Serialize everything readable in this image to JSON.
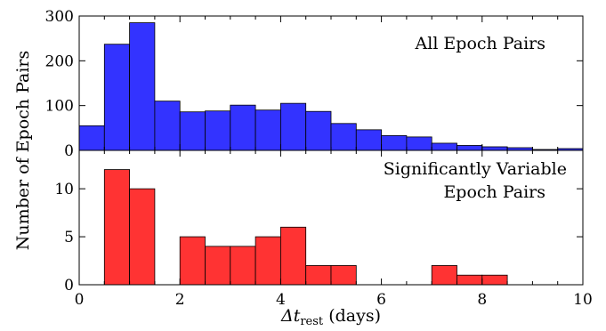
{
  "chart_data": [
    {
      "type": "bar",
      "title": "All Epoch Pairs",
      "xlabel": "Δt_rest (days)",
      "ylabel": "Number of Epoch Pairs",
      "xlim": [
        0,
        10
      ],
      "ylim": [
        0,
        300
      ],
      "bin_width": 0.5,
      "bin_starts": [
        0,
        0.5,
        1,
        1.5,
        2,
        2.5,
        3,
        3.5,
        4,
        4.5,
        5,
        5.5,
        6,
        6.5,
        7,
        7.5,
        8,
        8.5,
        9,
        9.5
      ],
      "values": [
        55,
        237,
        285,
        110,
        86,
        88,
        101,
        90,
        105,
        87,
        60,
        46,
        33,
        30,
        16,
        11,
        8,
        6,
        2,
        4
      ],
      "color": "#3333ff",
      "yticks": [
        "0",
        "100",
        "200",
        "300"
      ],
      "grid": false
    },
    {
      "type": "bar",
      "title_lines": [
        "Significantly Variable",
        "Epoch Pairs"
      ],
      "xlabel": "Δt_rest (days)",
      "ylabel": "Number of Epoch Pairs",
      "xlim": [
        0,
        10
      ],
      "ylim": [
        0,
        14
      ],
      "bin_width": 0.5,
      "bin_starts": [
        0,
        0.5,
        1,
        1.5,
        2,
        2.5,
        3,
        3.5,
        4,
        4.5,
        5,
        5.5,
        6,
        6.5,
        7,
        7.5,
        8,
        8.5,
        9,
        9.5
      ],
      "values": [
        0,
        12,
        10,
        0,
        5,
        4,
        4,
        5,
        6,
        2,
        2,
        0,
        0,
        0,
        2,
        1,
        1,
        0,
        0,
        0
      ],
      "color": "#ff3333",
      "yticks": [
        "0",
        "5",
        "10"
      ],
      "xticks": [
        "0",
        "2",
        "4",
        "6",
        "8",
        "10"
      ],
      "grid": false
    }
  ],
  "labels": {
    "ylabel": "Number of Epoch Pairs",
    "xlabel_main": "Δt",
    "xlabel_sub": "rest",
    "xlabel_unit": " (days)",
    "top_title": "All Epoch Pairs",
    "bottom_title_1": "Significantly Variable",
    "bottom_title_2": "Epoch Pairs"
  }
}
